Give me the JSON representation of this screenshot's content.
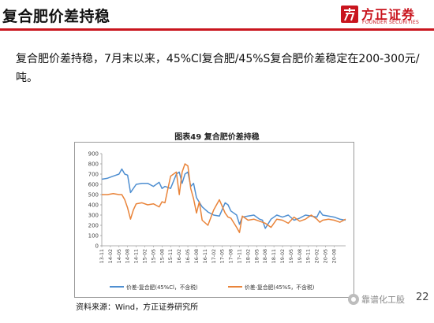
{
  "header": {
    "title": "复合肥价差持稳"
  },
  "logo": {
    "cn": "方正证券",
    "en": "FOUNDER SECURITIES",
    "color": "#c9151e"
  },
  "body": {
    "text": "复合肥价差持稳，7月末以来，45%Cl复合肥/45%S复合肥价差稳定在200-300元/吨。"
  },
  "chart_title": "图表49 复合肥价差持稳",
  "source": "资料来源：Wind，方正证券研究所",
  "watermark": "靠谱化工股",
  "page_number": "22",
  "chart_data": {
    "type": "line",
    "title": "图表49 复合肥价差持稳",
    "ylim": [
      0,
      900
    ],
    "yticks": [
      0,
      100,
      200,
      300,
      400,
      500,
      600,
      700,
      800,
      900
    ],
    "x_range": [
      "2013-11",
      "2020-12"
    ],
    "xticks": [
      "13-11",
      "14-02",
      "14-05",
      "14-08",
      "14-11",
      "15-02",
      "15-05",
      "15-08",
      "15-11",
      "16-02",
      "16-05",
      "16-08",
      "16-11",
      "17-02",
      "17-05",
      "17-08",
      "17-11",
      "18-02",
      "18-05",
      "18-08",
      "18-11",
      "19-02",
      "19-05",
      "19-08",
      "19-11",
      "20-02",
      "20-05",
      "20-08"
    ],
    "grid": false,
    "legend_position": "bottom",
    "series": [
      {
        "name": "价差-复合肥(45%Cl，不含税)",
        "color": "#4f8fd1",
        "x": [
          "2013-11",
          "2014-01",
          "2014-03",
          "2014-05",
          "2014-06",
          "2014-07",
          "2014-08",
          "2014-09",
          "2014-11",
          "2015-01",
          "2015-03",
          "2015-05",
          "2015-07",
          "2015-08",
          "2015-09",
          "2015-11",
          "2016-01",
          "2016-02",
          "2016-03",
          "2016-04",
          "2016-05",
          "2016-06",
          "2016-07",
          "2016-08",
          "2016-10",
          "2016-12",
          "2017-02",
          "2017-04",
          "2017-06",
          "2017-07",
          "2017-08",
          "2017-10",
          "2017-11",
          "2017-12",
          "2018-02",
          "2018-04",
          "2018-06",
          "2018-07",
          "2018-08",
          "2018-10",
          "2018-12",
          "2019-02",
          "2019-04",
          "2019-06",
          "2019-08",
          "2019-10",
          "2019-12",
          "2020-02",
          "2020-03",
          "2020-04",
          "2020-06",
          "2020-08",
          "2020-10",
          "2020-12"
        ],
        "values": [
          650,
          660,
          680,
          700,
          750,
          700,
          690,
          520,
          600,
          610,
          610,
          580,
          620,
          560,
          580,
          560,
          700,
          720,
          610,
          700,
          720,
          580,
          610,
          470,
          380,
          330,
          300,
          290,
          420,
          400,
          340,
          300,
          210,
          280,
          290,
          300,
          260,
          250,
          170,
          260,
          300,
          280,
          300,
          250,
          270,
          300,
          290,
          280,
          340,
          300,
          290,
          280,
          260,
          250
        ]
      },
      {
        "name": "价差-复合肥(45%S，不含税)",
        "color": "#e9843a",
        "x": [
          "2013-11",
          "2014-01",
          "2014-03",
          "2014-05",
          "2014-06",
          "2014-07",
          "2014-08",
          "2014-09",
          "2014-10",
          "2014-11",
          "2015-01",
          "2015-03",
          "2015-05",
          "2015-07",
          "2015-08",
          "2015-09",
          "2015-11",
          "2016-01",
          "2016-02",
          "2016-03",
          "2016-04",
          "2016-05",
          "2016-06",
          "2016-07",
          "2016-08",
          "2016-09",
          "2016-10",
          "2016-12",
          "2017-02",
          "2017-03",
          "2017-04",
          "2017-06",
          "2017-07",
          "2017-08",
          "2017-10",
          "2017-11",
          "2017-12",
          "2018-02",
          "2018-04",
          "2018-06",
          "2018-07",
          "2018-08",
          "2018-10",
          "2018-12",
          "2019-02",
          "2019-04",
          "2019-06",
          "2019-08",
          "2019-10",
          "2019-12",
          "2020-02",
          "2020-03",
          "2020-04",
          "2020-06",
          "2020-08",
          "2020-10",
          "2020-12"
        ],
        "values": [
          500,
          500,
          510,
          500,
          500,
          450,
          370,
          260,
          350,
          410,
          420,
          400,
          410,
          380,
          430,
          420,
          680,
          720,
          500,
          720,
          800,
          780,
          560,
          460,
          320,
          430,
          250,
          200,
          350,
          400,
          450,
          320,
          280,
          270,
          180,
          130,
          290,
          250,
          260,
          240,
          230,
          220,
          180,
          260,
          250,
          220,
          280,
          240,
          260,
          300,
          260,
          230,
          250,
          260,
          250,
          230,
          260
        ]
      }
    ]
  }
}
